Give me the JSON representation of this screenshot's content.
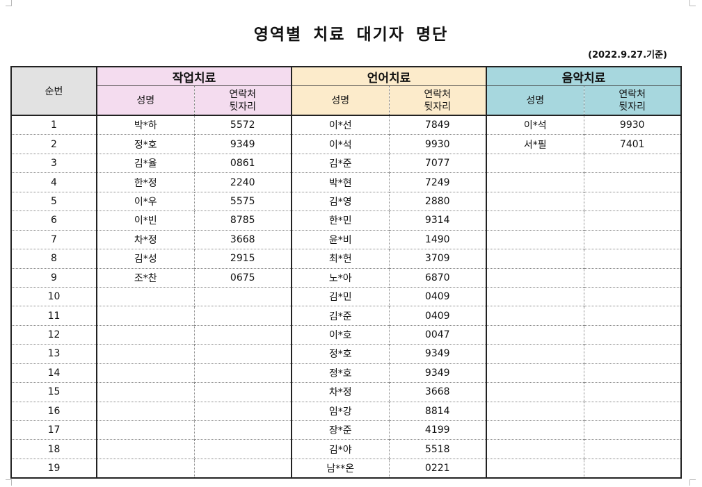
{
  "title": "영역별 치료 대기자 명단",
  "date_note": "(2022.9.27.기준)",
  "headers": {
    "seq": "순번",
    "groups": [
      "작업치료",
      "언어치료",
      "음악치료"
    ],
    "name": "성명",
    "phone_line1": "연락처",
    "phone_line2": "뒷자리"
  },
  "rows": [
    {
      "seq": "1",
      "occ_name": "박*하",
      "occ_phone": "5572",
      "speech_name": "이*선",
      "speech_phone": "7849",
      "music_name": "이*석",
      "music_phone": "9930"
    },
    {
      "seq": "2",
      "occ_name": "정*호",
      "occ_phone": "9349",
      "speech_name": "이*석",
      "speech_phone": "9930",
      "music_name": "서*필",
      "music_phone": "7401"
    },
    {
      "seq": "3",
      "occ_name": "김*율",
      "occ_phone": "0861",
      "speech_name": "김*준",
      "speech_phone": "7077",
      "music_name": "",
      "music_phone": ""
    },
    {
      "seq": "4",
      "occ_name": "한*정",
      "occ_phone": "2240",
      "speech_name": "박*현",
      "speech_phone": "7249",
      "music_name": "",
      "music_phone": ""
    },
    {
      "seq": "5",
      "occ_name": "이*우",
      "occ_phone": "5575",
      "speech_name": "김*영",
      "speech_phone": "2880",
      "music_name": "",
      "music_phone": ""
    },
    {
      "seq": "6",
      "occ_name": "이*빈",
      "occ_phone": "8785",
      "speech_name": "한*민",
      "speech_phone": "9314",
      "music_name": "",
      "music_phone": ""
    },
    {
      "seq": "7",
      "occ_name": "차*정",
      "occ_phone": "3668",
      "speech_name": "윤*비",
      "speech_phone": "1490",
      "music_name": "",
      "music_phone": ""
    },
    {
      "seq": "8",
      "occ_name": "김*성",
      "occ_phone": "2915",
      "speech_name": "최*헌",
      "speech_phone": "3709",
      "music_name": "",
      "music_phone": ""
    },
    {
      "seq": "9",
      "occ_name": "조*찬",
      "occ_phone": "0675",
      "speech_name": "노*아",
      "speech_phone": "6870",
      "music_name": "",
      "music_phone": ""
    },
    {
      "seq": "10",
      "occ_name": "",
      "occ_phone": "",
      "speech_name": "김*민",
      "speech_phone": "0409",
      "music_name": "",
      "music_phone": ""
    },
    {
      "seq": "11",
      "occ_name": "",
      "occ_phone": "",
      "speech_name": "김*준",
      "speech_phone": "0409",
      "music_name": "",
      "music_phone": ""
    },
    {
      "seq": "12",
      "occ_name": "",
      "occ_phone": "",
      "speech_name": "이*호",
      "speech_phone": "0047",
      "music_name": "",
      "music_phone": ""
    },
    {
      "seq": "13",
      "occ_name": "",
      "occ_phone": "",
      "speech_name": "정*호",
      "speech_phone": "9349",
      "music_name": "",
      "music_phone": ""
    },
    {
      "seq": "14",
      "occ_name": "",
      "occ_phone": "",
      "speech_name": "정*호",
      "speech_phone": "9349",
      "music_name": "",
      "music_phone": ""
    },
    {
      "seq": "15",
      "occ_name": "",
      "occ_phone": "",
      "speech_name": "차*정",
      "speech_phone": "3668",
      "music_name": "",
      "music_phone": ""
    },
    {
      "seq": "16",
      "occ_name": "",
      "occ_phone": "",
      "speech_name": "임*강",
      "speech_phone": "8814",
      "music_name": "",
      "music_phone": ""
    },
    {
      "seq": "17",
      "occ_name": "",
      "occ_phone": "",
      "speech_name": "장*준",
      "speech_phone": "4199",
      "music_name": "",
      "music_phone": ""
    },
    {
      "seq": "18",
      "occ_name": "",
      "occ_phone": "",
      "speech_name": "김*야",
      "speech_phone": "5518",
      "music_name": "",
      "music_phone": ""
    },
    {
      "seq": "19",
      "occ_name": "",
      "occ_phone": "",
      "speech_name": "남**온",
      "speech_phone": "0221",
      "music_name": "",
      "music_phone": ""
    }
  ]
}
